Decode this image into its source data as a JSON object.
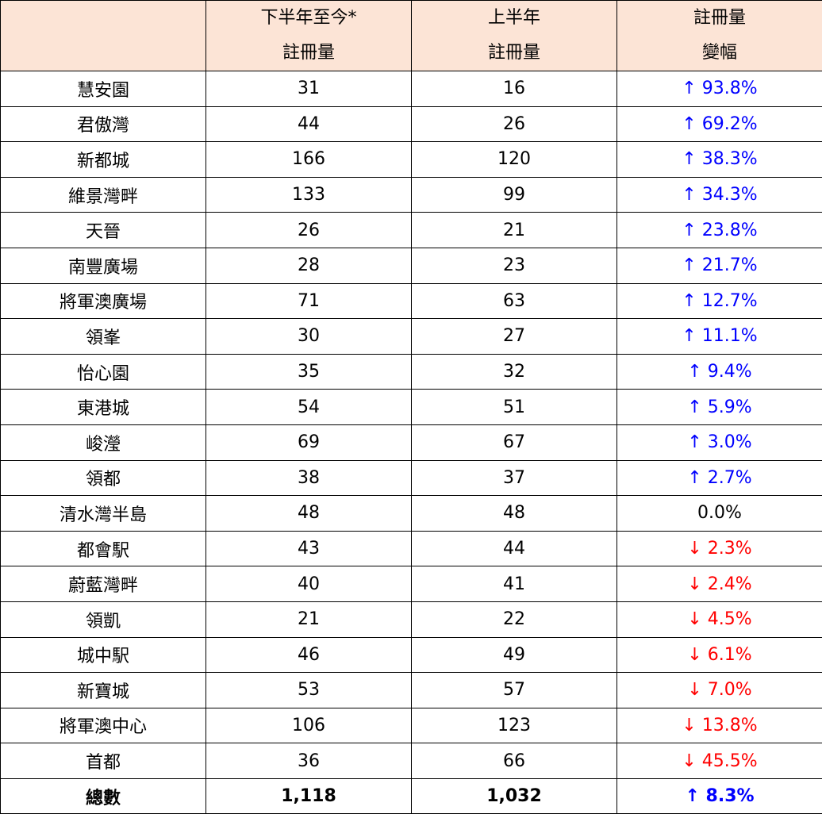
{
  "header": {
    "col1_line1": "下半年至今*",
    "col1_line2": "註冊量",
    "col2_line1": "上半年",
    "col2_line2": "註冊量",
    "col3_line1": "註冊量",
    "col3_line2": "變幅"
  },
  "colors": {
    "up": "#0000ff",
    "down": "#ff0000",
    "flat": "#000000",
    "header_bg": "#fce4d6"
  },
  "rows": [
    {
      "name": "慧安園",
      "h2": "31",
      "h1": "16",
      "change": "↑ 93.8%",
      "dir": "up"
    },
    {
      "name": "君傲灣",
      "h2": "44",
      "h1": "26",
      "change": "↑ 69.2%",
      "dir": "up"
    },
    {
      "name": "新都城",
      "h2": "166",
      "h1": "120",
      "change": "↑ 38.3%",
      "dir": "up"
    },
    {
      "name": "維景灣畔",
      "h2": "133",
      "h1": "99",
      "change": "↑ 34.3%",
      "dir": "up"
    },
    {
      "name": "天晉",
      "h2": "26",
      "h1": "21",
      "change": "↑ 23.8%",
      "dir": "up"
    },
    {
      "name": "南豐廣場",
      "h2": "28",
      "h1": "23",
      "change": "↑ 21.7%",
      "dir": "up"
    },
    {
      "name": "將軍澳廣場",
      "h2": "71",
      "h1": "63",
      "change": "↑ 12.7%",
      "dir": "up"
    },
    {
      "name": "領峯",
      "h2": "30",
      "h1": "27",
      "change": "↑ 11.1%",
      "dir": "up"
    },
    {
      "name": "怡心園",
      "h2": "35",
      "h1": "32",
      "change": "↑ 9.4%",
      "dir": "up"
    },
    {
      "name": "東港城",
      "h2": "54",
      "h1": "51",
      "change": "↑ 5.9%",
      "dir": "up"
    },
    {
      "name": "峻瀅",
      "h2": "69",
      "h1": "67",
      "change": "↑ 3.0%",
      "dir": "up"
    },
    {
      "name": "領都",
      "h2": "38",
      "h1": "37",
      "change": "↑ 2.7%",
      "dir": "up"
    },
    {
      "name": "清水灣半島",
      "h2": "48",
      "h1": "48",
      "change": "0.0%",
      "dir": "flat"
    },
    {
      "name": "都會駅",
      "h2": "43",
      "h1": "44",
      "change": "↓ 2.3%",
      "dir": "down"
    },
    {
      "name": "蔚藍灣畔",
      "h2": "40",
      "h1": "41",
      "change": "↓ 2.4%",
      "dir": "down"
    },
    {
      "name": "領凱",
      "h2": "21",
      "h1": "22",
      "change": "↓ 4.5%",
      "dir": "down"
    },
    {
      "name": "城中駅",
      "h2": "46",
      "h1": "49",
      "change": "↓ 6.1%",
      "dir": "down"
    },
    {
      "name": "新寶城",
      "h2": "53",
      "h1": "57",
      "change": "↓ 7.0%",
      "dir": "down"
    },
    {
      "name": "將軍澳中心",
      "h2": "106",
      "h1": "123",
      "change": "↓ 13.8%",
      "dir": "down"
    },
    {
      "name": "首都",
      "h2": "36",
      "h1": "66",
      "change": "↓ 45.5%",
      "dir": "down"
    }
  ],
  "total": {
    "name": "總數",
    "h2": "1,118",
    "h1": "1,032",
    "change": "↑ 8.3%",
    "dir": "up"
  }
}
